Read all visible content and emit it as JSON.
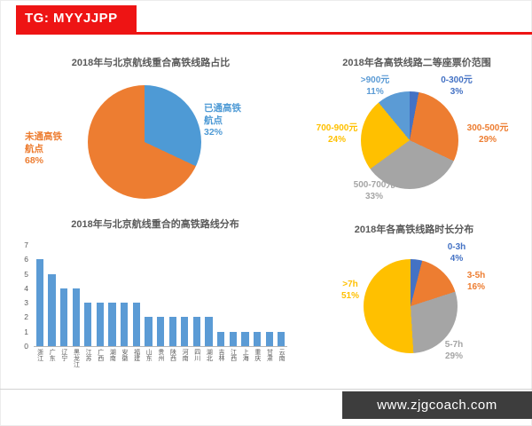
{
  "banner": {
    "label": "TG: MYYJJPP",
    "color": "#ee1414"
  },
  "footer": {
    "site": "www.zjgcoach.com",
    "bg": "#3d3d3d"
  },
  "chart_data": [
    {
      "type": "pie",
      "title": "2018年与北京航线重合高铁线路占比",
      "legend_position": "none",
      "slices": [
        {
          "label": "已通高铁航点",
          "pct": "32%",
          "color": "#4e9ad5"
        },
        {
          "label": "未通高铁航点",
          "pct": "68%",
          "color": "#ed7d31"
        }
      ]
    },
    {
      "type": "pie",
      "title": "2018年各高铁线路二等座票价范围",
      "legend_position": "none",
      "slices": [
        {
          "label": "0-300元",
          "pct": "3%",
          "color": "#4472c4"
        },
        {
          "label": "300-500元",
          "pct": "29%",
          "color": "#ed7d31"
        },
        {
          "label": "500-700元",
          "pct": "33%",
          "color": "#a5a5a5"
        },
        {
          "label": "700-900元",
          "pct": "24%",
          "color": "#ffc000"
        },
        {
          "label": ">900元",
          "pct": "11%",
          "color": "#5b9bd5"
        }
      ]
    },
    {
      "type": "bar",
      "title": "2018年与北京航线重合的高铁路线分布",
      "categories": [
        "浙江",
        "广东",
        "辽宁",
        "黑龙江",
        "江苏",
        "广西",
        "湖南",
        "安徽",
        "福建",
        "山东",
        "贵州",
        "陕西",
        "河南",
        "四川",
        "湖北",
        "吉林",
        "江西",
        "上海",
        "重庆",
        "甘肃",
        "云南"
      ],
      "values": [
        6,
        5,
        4,
        4,
        3,
        3,
        3,
        3,
        3,
        2,
        2,
        2,
        2,
        2,
        2,
        1,
        1,
        1,
        1,
        1,
        1
      ],
      "ylim": [
        0,
        7
      ],
      "yticks": [
        0,
        1,
        2,
        3,
        4,
        5,
        6,
        7
      ],
      "bar_color": "#5b9bd5",
      "grid": false
    },
    {
      "type": "pie",
      "title": "2018年各高铁线路时长分布",
      "legend_position": "none",
      "slices": [
        {
          "label": "0-3h",
          "pct": "4%",
          "color": "#4472c4"
        },
        {
          "label": "3-5h",
          "pct": "16%",
          "color": "#ed7d31"
        },
        {
          "label": "5-7h",
          "pct": "29%",
          "color": "#a5a5a5"
        },
        {
          "label": ">7h",
          "pct": "51%",
          "color": "#ffc000"
        }
      ]
    }
  ]
}
